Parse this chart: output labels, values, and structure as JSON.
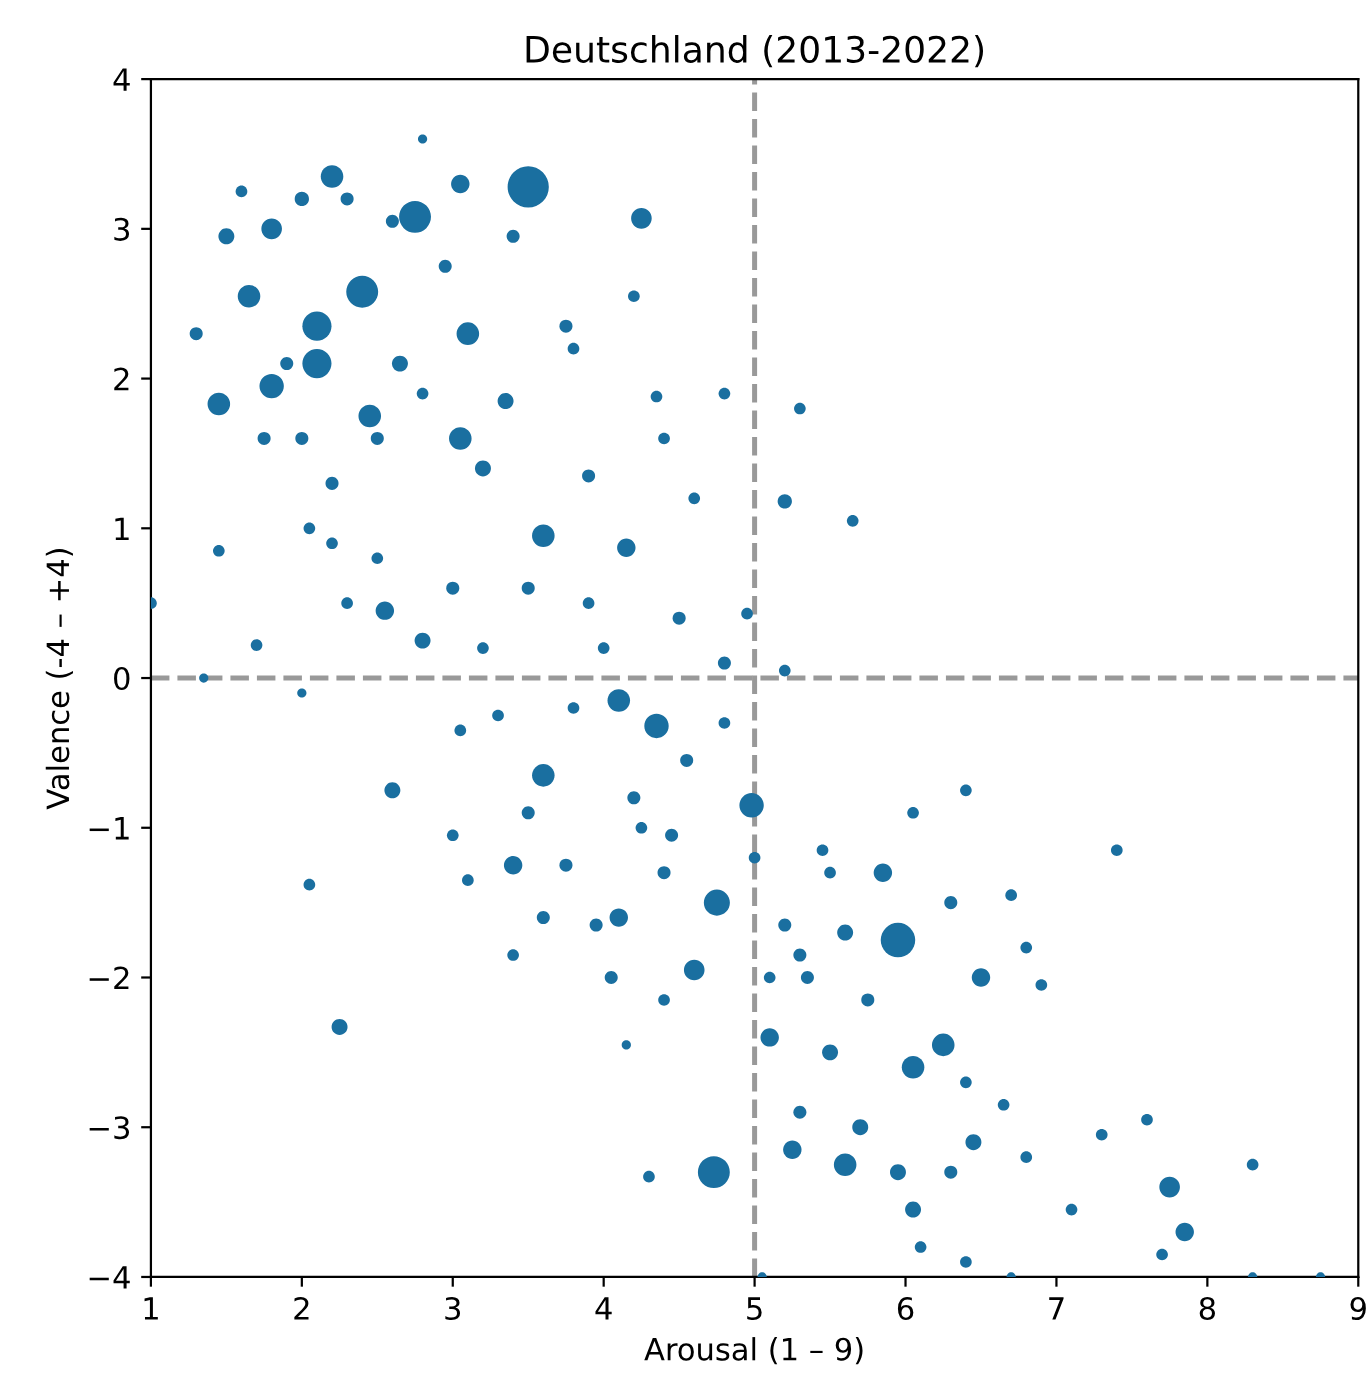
{
  "chart_data": {
    "type": "bubble",
    "title": "Deutschland (2013-2022)",
    "xlabel": "Arousal (1 – 9)",
    "ylabel": "Valence (-4 – +4)",
    "xlim": [
      1,
      9
    ],
    "ylim": [
      -4,
      4
    ],
    "xticks": [
      1,
      2,
      3,
      4,
      5,
      6,
      7,
      8,
      9
    ],
    "yticks": [
      -4,
      -3,
      -2,
      -1,
      0,
      1,
      2,
      3,
      4
    ],
    "grid": false,
    "marker": "circle",
    "color": "#1a6fa0",
    "ref_lines": [
      {
        "axis": "x",
        "value": 5,
        "color": "#999999",
        "line_style": "dashed"
      },
      {
        "axis": "y",
        "value": 0,
        "color": "#999999",
        "line_style": "dashed"
      }
    ],
    "x": [
      1.3,
      1.45,
      1.5,
      1.6,
      1.65,
      1.8,
      1.8,
      1.9,
      2.0,
      2.1,
      2.1,
      2.2,
      2.3,
      2.4,
      2.45,
      2.6,
      2.75,
      2.8,
      3.05,
      3.5,
      3.4,
      4.25,
      3.05,
      3.1,
      2.0,
      2.2,
      2.5,
      2.8,
      3.6,
      3.8,
      4.2,
      4.15,
      4.4,
      4.35,
      2.5,
      2.55,
      2.8,
      3.2,
      1.45,
      1.7,
      1.0,
      1.35,
      2.0,
      2.2,
      2.05,
      3.5,
      3.2,
      3.9,
      4.6,
      4.8,
      5.3,
      5.2,
      5.65,
      4.5,
      4.0,
      4.8,
      5.2,
      4.95,
      4.1,
      4.35,
      3.6,
      2.6,
      3.05,
      3.3,
      3.8,
      3.1,
      2.05,
      2.25,
      3.4,
      3.5,
      4.1,
      4.2,
      4.45,
      4.8,
      4.98,
      4.75,
      4.6,
      4.25,
      4.4,
      4.05,
      4.15,
      4.3,
      4.73,
      3.95,
      3.0,
      3.4,
      3.6,
      5.0,
      5.1,
      5.1,
      5.3,
      5.5,
      5.6,
      5.95,
      6.05,
      6.25,
      6.5,
      6.7,
      6.4,
      6.05,
      5.85,
      5.5,
      5.3,
      5.25,
      5.6,
      5.7,
      5.95,
      6.05,
      6.3,
      6.45,
      6.4,
      6.65,
      6.9,
      6.8,
      7.1,
      7.3,
      7.6,
      7.4,
      7.75,
      7.85,
      7.7,
      8.3,
      8.3,
      8.75,
      6.7,
      5.05,
      5.45,
      5.2,
      6.3,
      6.8,
      5.75,
      6.4,
      6.1,
      5.35,
      4.55,
      4.4,
      3.75,
      2.65,
      2.95,
      3.75,
      3.9,
      3.35,
      1.75,
      2.3,
      3.0
    ],
    "values": [
      2.3,
      1.83,
      2.95,
      3.25,
      2.55,
      3.0,
      1.95,
      2.1,
      3.2,
      2.35,
      2.1,
      3.35,
      3.2,
      2.58,
      1.75,
      3.05,
      3.08,
      3.6,
      3.3,
      3.28,
      2.95,
      3.07,
      1.6,
      2.3,
      1.6,
      1.3,
      1.6,
      1.9,
      0.95,
      2.2,
      2.55,
      0.87,
      1.6,
      1.88,
      0.8,
      0.45,
      0.25,
      1.4,
      0.85,
      0.22,
      0.5,
      0.0,
      -0.1,
      0.9,
      1.0,
      0.6,
      0.2,
      0.5,
      1.2,
      1.9,
      1.8,
      1.18,
      1.05,
      0.4,
      0.2,
      0.1,
      0.05,
      0.43,
      -0.15,
      -0.32,
      -0.65,
      -0.75,
      -0.35,
      -0.25,
      -0.2,
      -1.35,
      -1.38,
      -2.33,
      -1.25,
      -0.9,
      -1.6,
      -0.8,
      -1.05,
      -0.3,
      -0.85,
      -1.5,
      -1.95,
      -1.0,
      -2.15,
      -2.0,
      -2.45,
      -3.33,
      -3.3,
      -1.65,
      -1.05,
      -1.85,
      -1.6,
      -1.2,
      -2.0,
      -2.4,
      -1.85,
      -1.3,
      -1.7,
      -1.75,
      -2.6,
      -2.45,
      -2.0,
      -1.45,
      -0.75,
      -0.9,
      -1.3,
      -2.5,
      -2.9,
      -3.15,
      -3.25,
      -3.0,
      -3.3,
      -3.55,
      -3.3,
      -3.1,
      -2.7,
      -2.85,
      -2.05,
      -3.2,
      -3.55,
      -3.05,
      -2.95,
      -1.15,
      -3.4,
      -3.7,
      -3.85,
      -3.25,
      -4.0,
      -4.0,
      -4.0,
      -4.0,
      -1.15,
      -1.65,
      -1.5,
      -1.8,
      -2.15,
      -3.9,
      -3.8,
      -2.0,
      -0.55,
      -1.3,
      -1.25,
      2.1,
      2.75,
      2.35,
      1.35,
      1.85,
      1.6,
      0.5,
      0.6
    ],
    "sizes": [
      0.1,
      0.3,
      0.15,
      0.08,
      0.3,
      0.25,
      0.35,
      0.1,
      0.12,
      0.5,
      0.5,
      0.3,
      0.1,
      0.6,
      0.3,
      0.1,
      0.6,
      0.05,
      0.2,
      1.0,
      0.1,
      0.25,
      0.3,
      0.3,
      0.1,
      0.1,
      0.1,
      0.08,
      0.3,
      0.08,
      0.08,
      0.2,
      0.08,
      0.08,
      0.08,
      0.2,
      0.15,
      0.15,
      0.08,
      0.08,
      0.08,
      0.05,
      0.05,
      0.08,
      0.08,
      0.1,
      0.08,
      0.08,
      0.08,
      0.08,
      0.08,
      0.12,
      0.08,
      0.1,
      0.08,
      0.1,
      0.08,
      0.08,
      0.3,
      0.35,
      0.3,
      0.15,
      0.08,
      0.08,
      0.08,
      0.08,
      0.08,
      0.15,
      0.2,
      0.1,
      0.2,
      0.1,
      0.1,
      0.08,
      0.35,
      0.4,
      0.25,
      0.08,
      0.08,
      0.1,
      0.05,
      0.08,
      0.6,
      0.1,
      0.08,
      0.08,
      0.1,
      0.08,
      0.08,
      0.2,
      0.1,
      0.08,
      0.15,
      0.7,
      0.3,
      0.3,
      0.2,
      0.08,
      0.08,
      0.08,
      0.2,
      0.15,
      0.1,
      0.2,
      0.3,
      0.15,
      0.15,
      0.15,
      0.1,
      0.15,
      0.08,
      0.08,
      0.08,
      0.08,
      0.08,
      0.08,
      0.08,
      0.08,
      0.25,
      0.2,
      0.08,
      0.08,
      0.05,
      0.05,
      0.05,
      0.05,
      0.08,
      0.1,
      0.1,
      0.08,
      0.1,
      0.08,
      0.08,
      0.1,
      0.1,
      0.1,
      0.1,
      0.15,
      0.1,
      0.1,
      0.1,
      0.15,
      0.1,
      0.08,
      0.1
    ]
  }
}
